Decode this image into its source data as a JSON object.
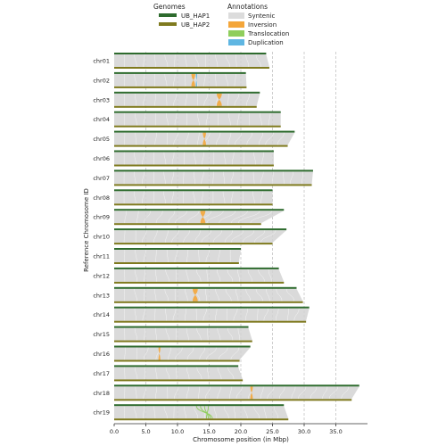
{
  "chart_data": {
    "type": "synteny",
    "xlabel": "Chromosome position (in Mbp)",
    "ylabel": "Reference Chromosome ID",
    "xlim": [
      0,
      40
    ],
    "xticks": [
      0.0,
      5.0,
      10.0,
      15.0,
      20.0,
      25.0,
      30.0,
      35.0
    ],
    "xtick_labels": [
      "0.0",
      "5.0",
      "10.0",
      "15.0",
      "20.0",
      "25.0",
      "30.0",
      "35.0"
    ],
    "grid": "vertical dashed",
    "legend": {
      "placement": "top",
      "genomes_title": "Genomes",
      "annotations_title": "Annotations",
      "genomes": [
        {
          "name": "UB_HAP1",
          "color": "#2e6b2e"
        },
        {
          "name": "UB_HAP2",
          "color": "#7f7a1e"
        }
      ],
      "annotations": [
        {
          "name": "Syntenic",
          "color": "#dcdcdc"
        },
        {
          "name": "Inversion",
          "color": "#f4a63a"
        },
        {
          "name": "Translocation",
          "color": "#8fce5c"
        },
        {
          "name": "Duplication",
          "color": "#5fb6e2"
        }
      ]
    },
    "chromosomes": [
      {
        "name": "chr01",
        "hap1_length": 24.0,
        "hap2_length": 24.5
      },
      {
        "name": "chr02",
        "hap1_length": 20.8,
        "hap2_length": 20.9
      },
      {
        "name": "chr03",
        "hap1_length": 23.0,
        "hap2_length": 22.5
      },
      {
        "name": "chr04",
        "hap1_length": 26.3,
        "hap2_length": 26.3
      },
      {
        "name": "chr05",
        "hap1_length": 28.5,
        "hap2_length": 27.4
      },
      {
        "name": "chr06",
        "hap1_length": 25.2,
        "hap2_length": 25.2
      },
      {
        "name": "chr07",
        "hap1_length": 31.4,
        "hap2_length": 31.2
      },
      {
        "name": "chr08",
        "hap1_length": 25.0,
        "hap2_length": 25.0
      },
      {
        "name": "chr09",
        "hap1_length": 26.8,
        "hap2_length": 23.2
      },
      {
        "name": "chr10",
        "hap1_length": 27.2,
        "hap2_length": 25.0
      },
      {
        "name": "chr11",
        "hap1_length": 20.0,
        "hap2_length": 19.7
      },
      {
        "name": "chr12",
        "hap1_length": 26.0,
        "hap2_length": 26.8
      },
      {
        "name": "chr13",
        "hap1_length": 28.8,
        "hap2_length": 29.8
      },
      {
        "name": "chr14",
        "hap1_length": 30.8,
        "hap2_length": 30.3
      },
      {
        "name": "chr15",
        "hap1_length": 21.2,
        "hap2_length": 21.8
      },
      {
        "name": "chr16",
        "hap1_length": 21.5,
        "hap2_length": 19.8
      },
      {
        "name": "chr17",
        "hap1_length": 19.6,
        "hap2_length": 20.3
      },
      {
        "name": "chr18",
        "hap1_length": 38.7,
        "hap2_length": 37.5
      },
      {
        "name": "chr19",
        "hap1_length": 26.8,
        "hap2_length": 27.5
      }
    ],
    "inversions": [
      {
        "chr": "chr02",
        "start": 12.2,
        "end": 12.8
      },
      {
        "chr": "chr03",
        "start": 16.2,
        "end": 17.0
      },
      {
        "chr": "chr05",
        "start": 14.0,
        "end": 14.5
      },
      {
        "chr": "chr09",
        "start": 13.6,
        "end": 14.4
      },
      {
        "chr": "chr13",
        "start": 12.4,
        "end": 13.2
      },
      {
        "chr": "chr16",
        "start": 7.0,
        "end": 7.3
      },
      {
        "chr": "chr18",
        "start": 21.5,
        "end": 21.9
      }
    ],
    "translocations": [
      {
        "chr": "chr19",
        "start": 13.0,
        "end": 15.5
      }
    ],
    "duplications": [
      {
        "chr": "chr02",
        "start": 12.9,
        "end": 13.1
      }
    ]
  }
}
